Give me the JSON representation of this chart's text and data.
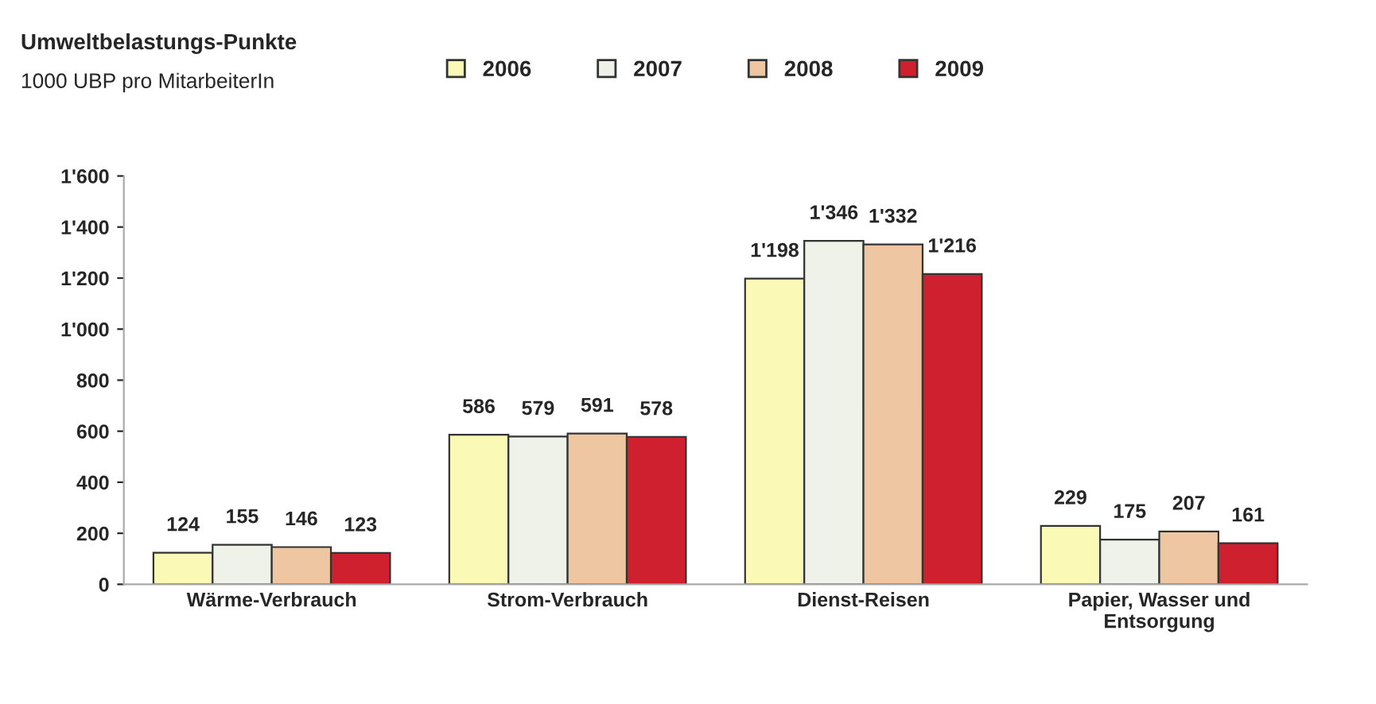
{
  "chart_data": {
    "type": "bar",
    "title": "Umweltbelastungs-Punkte",
    "subtitle": "1000 UBP pro MitarbeiterIn",
    "categories": [
      "Wärme-Verbrauch",
      "Strom-Verbrauch",
      "Dienst-Reisen",
      "Papier, Wasser und\nEntsorgung"
    ],
    "series": [
      {
        "name": "2006",
        "color": "#fbf9b6",
        "values": [
          124,
          586,
          1198,
          229
        ],
        "value_labels": [
          "124",
          "586",
          "1'198",
          "229"
        ]
      },
      {
        "name": "2007",
        "color": "#eef2e8",
        "values": [
          155,
          579,
          1346,
          175
        ],
        "value_labels": [
          "155",
          "579",
          "1'346",
          "175"
        ]
      },
      {
        "name": "2008",
        "color": "#efc6a2",
        "values": [
          146,
          591,
          1332,
          207
        ],
        "value_labels": [
          "146",
          "591",
          "1'332",
          "207"
        ]
      },
      {
        "name": "2009",
        "color": "#cf2030",
        "values": [
          123,
          578,
          1216,
          161
        ],
        "value_labels": [
          "123",
          "578",
          "1'216",
          "161"
        ]
      }
    ],
    "ylim": [
      0,
      1600
    ],
    "yticks": [
      {
        "value": 0,
        "label": "0"
      },
      {
        "value": 200,
        "label": "200"
      },
      {
        "value": 400,
        "label": "400"
      },
      {
        "value": 600,
        "label": "600"
      },
      {
        "value": 800,
        "label": "800"
      },
      {
        "value": 1000,
        "label": "1'000"
      },
      {
        "value": 1200,
        "label": "1'200"
      },
      {
        "value": 1400,
        "label": "1'400"
      },
      {
        "value": 1600,
        "label": "1'600"
      }
    ],
    "grid": false,
    "legend": "top"
  }
}
